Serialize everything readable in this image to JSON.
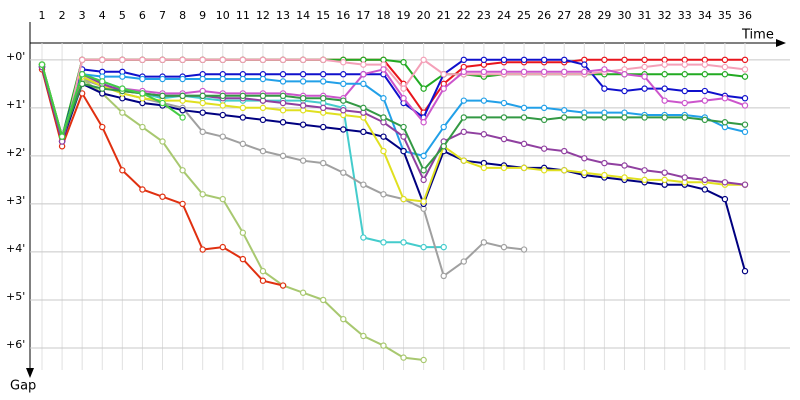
{
  "chart_data": {
    "type": "line",
    "x_label": "Time",
    "y_label": "Gap",
    "categories": [
      "1",
      "2",
      "3",
      "4",
      "5",
      "6",
      "7",
      "8",
      "9",
      "10",
      "11",
      "12",
      "13",
      "14",
      "15",
      "16",
      "17",
      "18",
      "19",
      "20",
      "21",
      "22",
      "23",
      "24",
      "25",
      "26",
      "27",
      "28",
      "29",
      "30",
      "31",
      "32",
      "33",
      "34",
      "35",
      "36"
    ],
    "ylim": [
      -0.6,
      7
    ],
    "invert_y": true,
    "grid": true,
    "yticks": [
      {
        "value": 0,
        "label": "+0'"
      },
      {
        "value": 1,
        "label": "+1'"
      },
      {
        "value": 2,
        "label": "+2'"
      },
      {
        "value": 3,
        "label": "+3'"
      },
      {
        "value": 4,
        "label": "+4'"
      },
      {
        "value": 5,
        "label": "+5'"
      },
      {
        "value": 6,
        "label": "+6'"
      }
    ],
    "series": [
      {
        "color": "#e8141c",
        "values": [
          0.1,
          1.7,
          0,
          0,
          0,
          0,
          0,
          0,
          0,
          0,
          0,
          0,
          0,
          0,
          0,
          0,
          0,
          0,
          0.5,
          1.1,
          0.5,
          0.15,
          0.1,
          0.05,
          0.05,
          0.05,
          0.05,
          0,
          0,
          0,
          0,
          0,
          0,
          0,
          0,
          0
        ]
      },
      {
        "color": "#22aa22",
        "values": [
          0.1,
          1.6,
          0,
          0,
          0,
          0,
          0,
          0,
          0,
          0,
          0,
          0,
          0,
          0,
          0,
          0,
          0,
          0,
          0.05,
          0.6,
          0.3,
          0.3,
          0.35,
          0.3,
          0.3,
          0.3,
          0.3,
          0.3,
          0.3,
          0.3,
          0.3,
          0.3,
          0.3,
          0.3,
          0.3,
          0.35
        ]
      },
      {
        "color": "#1010cc",
        "values": [
          0.1,
          1.6,
          0.2,
          0.25,
          0.25,
          0.35,
          0.35,
          0.35,
          0.3,
          0.3,
          0.3,
          0.3,
          0.3,
          0.3,
          0.3,
          0.3,
          0.3,
          0.3,
          0.9,
          1.2,
          0.3,
          0,
          0,
          0,
          0,
          0,
          0,
          0.1,
          0.6,
          0.65,
          0.6,
          0.6,
          0.65,
          0.65,
          0.75,
          0.8
        ]
      },
      {
        "color": "#f4a0b8",
        "values": [
          0.1,
          1.8,
          0,
          0,
          0,
          0,
          0,
          0,
          0,
          0,
          0,
          0,
          0,
          0,
          0,
          0.05,
          0.1,
          0.1,
          0.6,
          0,
          0.3,
          0.3,
          0.3,
          0.3,
          0.3,
          0.3,
          0.3,
          0.3,
          0.25,
          0.2,
          0.15,
          0.1,
          0.1,
          0.1,
          0.15,
          0.2
        ]
      },
      {
        "color": "#cc55cc",
        "values": [
          0.15,
          1.7,
          0.4,
          0.55,
          0.6,
          0.65,
          0.7,
          0.7,
          0.65,
          0.7,
          0.7,
          0.7,
          0.7,
          0.75,
          0.75,
          0.8,
          0.3,
          0.2,
          0.8,
          1.3,
          0.6,
          0.25,
          0.25,
          0.25,
          0.25,
          0.25,
          0.25,
          0.25,
          0.2,
          0.3,
          0.35,
          0.85,
          0.9,
          0.85,
          0.8,
          0.95
        ]
      },
      {
        "color": "#22a0e8",
        "values": [
          0.15,
          1.6,
          0.3,
          0.35,
          0.35,
          0.4,
          0.4,
          0.4,
          0.4,
          0.4,
          0.4,
          0.4,
          0.45,
          0.45,
          0.45,
          0.5,
          0.5,
          0.8,
          1.9,
          2.0,
          1.4,
          0.85,
          0.85,
          0.9,
          1.0,
          1.0,
          1.05,
          1.1,
          1.1,
          1.1,
          1.15,
          1.15,
          1.15,
          1.2,
          1.4,
          1.5
        ]
      },
      {
        "color": "#44cccc",
        "values": [
          0.1,
          1.6,
          0.3,
          0.45,
          0.6,
          0.7,
          0.8,
          0.75,
          0.8,
          0.85,
          0.85,
          0.85,
          0.85,
          0.85,
          0.9,
          1.0,
          3.7,
          3.8,
          3.8,
          3.9,
          3.9,
          null,
          null,
          null,
          null,
          null,
          null,
          null,
          null,
          null,
          null,
          null,
          null,
          null,
          null,
          null
        ]
      },
      {
        "color": "#a0a0a0",
        "values": [
          0.1,
          1.6,
          0.4,
          0.55,
          0.7,
          0.8,
          0.9,
          1.0,
          1.5,
          1.6,
          1.75,
          1.9,
          2.0,
          2.1,
          2.15,
          2.35,
          2.6,
          2.8,
          2.9,
          3.1,
          4.5,
          4.2,
          3.8,
          3.9,
          3.95,
          null,
          null,
          null,
          null,
          null,
          null,
          null,
          null,
          null,
          null,
          null
        ]
      },
      {
        "color": "#a8c870",
        "values": [
          0.1,
          1.6,
          0.4,
          0.7,
          1.1,
          1.4,
          1.7,
          2.3,
          2.8,
          2.9,
          3.6,
          4.4,
          4.7,
          4.85,
          5.0,
          5.4,
          5.75,
          5.95,
          6.2,
          6.25,
          null,
          null,
          null,
          null,
          null,
          null,
          null,
          null,
          null,
          null,
          null,
          null,
          null,
          null,
          null,
          null
        ]
      },
      {
        "color": "#e03010",
        "values": [
          0.2,
          1.8,
          0.7,
          1.4,
          2.3,
          2.7,
          2.85,
          3.0,
          3.95,
          3.9,
          4.15,
          4.6,
          4.7,
          null,
          null,
          null,
          null,
          null,
          null,
          null,
          null,
          null,
          null,
          null,
          null,
          null,
          null,
          null,
          null,
          null,
          null,
          null,
          null,
          null,
          null,
          null
        ]
      },
      {
        "color": "#000080",
        "values": [
          0.15,
          1.7,
          0.5,
          0.7,
          0.8,
          0.9,
          0.95,
          1.05,
          1.1,
          1.15,
          1.2,
          1.25,
          1.3,
          1.35,
          1.4,
          1.45,
          1.5,
          1.6,
          1.9,
          3.0,
          1.9,
          2.1,
          2.15,
          2.2,
          2.25,
          2.25,
          2.3,
          2.4,
          2.45,
          2.5,
          2.55,
          2.6,
          2.6,
          2.7,
          2.9,
          4.4
        ]
      },
      {
        "color": "#e0e020",
        "values": [
          0.1,
          1.6,
          0.35,
          0.55,
          0.7,
          0.8,
          0.85,
          0.85,
          0.9,
          0.95,
          1.0,
          1.0,
          1.05,
          1.05,
          1.1,
          1.15,
          1.2,
          1.9,
          2.9,
          2.95,
          1.8,
          2.1,
          2.25,
          2.25,
          2.25,
          2.3,
          2.3,
          2.35,
          2.4,
          2.45,
          2.5,
          2.5,
          2.55,
          2.55,
          2.6,
          2.6
        ]
      },
      {
        "color": "#9040a0",
        "values": [
          0.15,
          1.7,
          0.3,
          0.5,
          0.65,
          0.7,
          0.75,
          0.75,
          0.75,
          0.8,
          0.8,
          0.85,
          0.9,
          0.95,
          1.0,
          1.05,
          1.1,
          1.3,
          1.6,
          2.5,
          1.7,
          1.5,
          1.55,
          1.65,
          1.75,
          1.85,
          1.9,
          2.05,
          2.15,
          2.2,
          2.3,
          2.35,
          2.45,
          2.5,
          2.55,
          2.6
        ]
      },
      {
        "color": "#339944",
        "values": [
          0.1,
          1.6,
          0.5,
          0.6,
          0.65,
          0.7,
          0.75,
          0.75,
          0.75,
          0.75,
          0.75,
          0.75,
          0.75,
          0.8,
          0.8,
          0.85,
          1.0,
          1.2,
          1.4,
          2.3,
          1.8,
          1.2,
          1.2,
          1.2,
          1.2,
          1.25,
          1.2,
          1.2,
          1.2,
          1.2,
          1.2,
          1.2,
          1.2,
          1.25,
          1.3,
          1.35
        ]
      },
      {
        "color": "#44cc44",
        "values": [
          0.1,
          1.6,
          0.3,
          0.45,
          0.6,
          0.7,
          0.9,
          1.2,
          null,
          null,
          null,
          null,
          null,
          null,
          null,
          null,
          null,
          null,
          null,
          null,
          null,
          null,
          null,
          null,
          null,
          null,
          null,
          null,
          null,
          null,
          null,
          null,
          null,
          null,
          null,
          null
        ]
      }
    ]
  }
}
